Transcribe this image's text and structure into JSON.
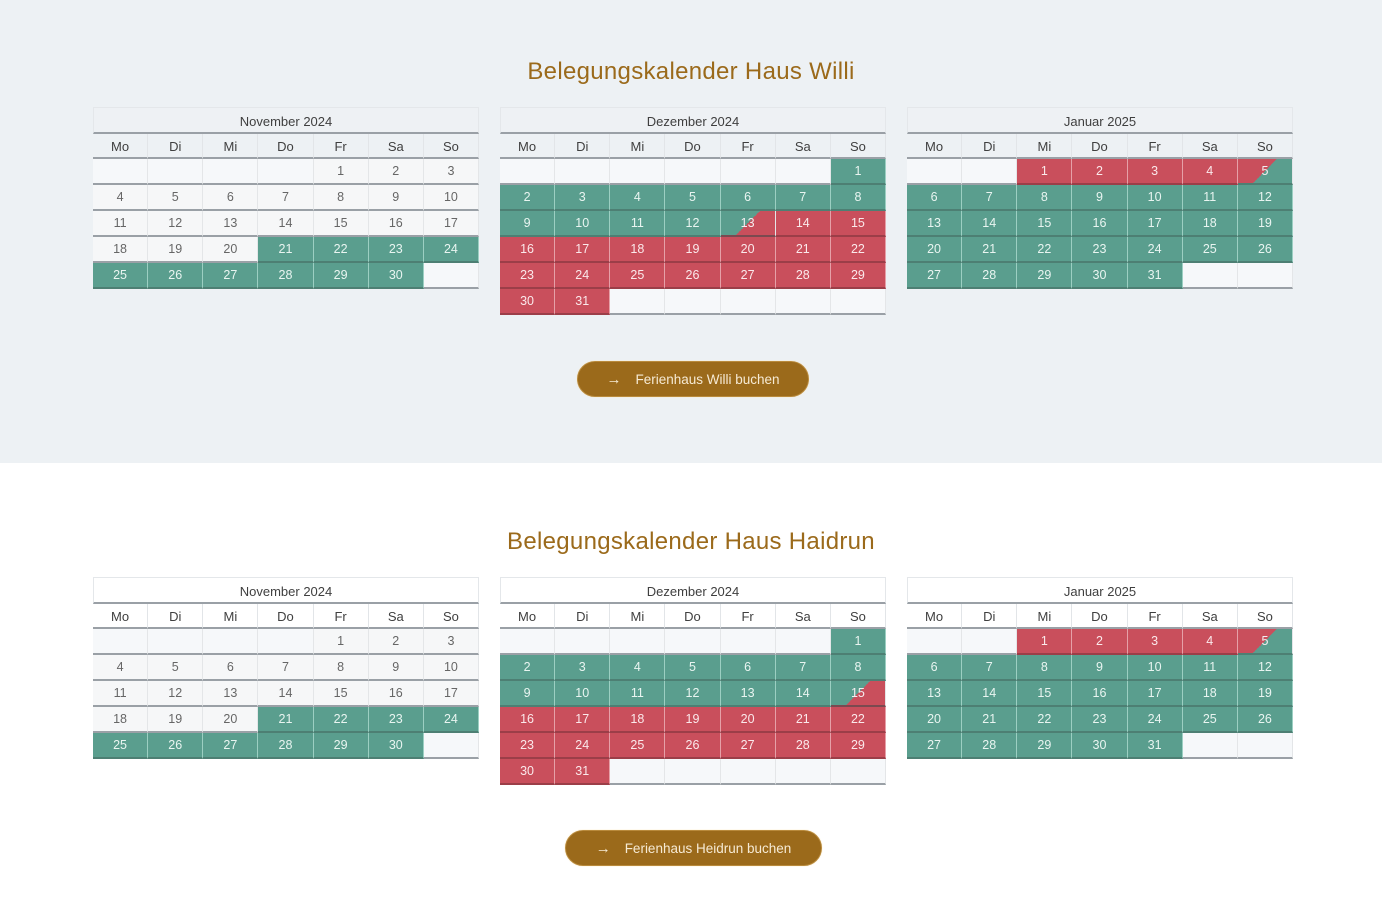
{
  "colors": {
    "accent": "#9b6a1b",
    "free": "#5a9e8e",
    "booked": "#c94f5c",
    "section1_bg": "#edf1f4",
    "section2_bg": "#ffffff"
  },
  "weekday_labels": [
    "Mo",
    "Di",
    "Mi",
    "Do",
    "Fr",
    "Sa",
    "So"
  ],
  "legend_note": "free = green, booked = red, half = arrival/departure day",
  "sections": [
    {
      "title": "Belegungskalender Haus Willi",
      "button": {
        "label": "Ferienhaus Willi buchen",
        "icon": "arrow-right-icon"
      },
      "months": [
        {
          "name": "November 2024",
          "lead_empty": 4,
          "days": 30,
          "status": {
            "21": "free",
            "22": "free",
            "23": "free",
            "24": "free",
            "25": "free",
            "26": "free",
            "27": "free",
            "28": "free",
            "29": "free",
            "30": "free"
          }
        },
        {
          "name": "Dezember 2024",
          "lead_empty": 6,
          "days": 31,
          "status": {
            "1": "free",
            "2": "free",
            "3": "free",
            "4": "free",
            "5": "free",
            "6": "free",
            "7": "free",
            "8": "free",
            "9": "free",
            "10": "free",
            "11": "free",
            "12": "free",
            "13": "half-fb",
            "14": "booked",
            "15": "booked",
            "16": "booked",
            "17": "booked",
            "18": "booked",
            "19": "booked",
            "20": "booked",
            "21": "booked",
            "22": "booked",
            "23": "booked",
            "24": "booked",
            "25": "booked",
            "26": "booked",
            "27": "booked",
            "28": "booked",
            "29": "booked",
            "30": "booked",
            "31": "booked"
          }
        },
        {
          "name": "Januar 2025",
          "lead_empty": 2,
          "days": 31,
          "status": {
            "1": "booked",
            "2": "booked",
            "3": "booked",
            "4": "booked",
            "5": "half-bf",
            "6": "free",
            "7": "free",
            "8": "free",
            "9": "free",
            "10": "free",
            "11": "free",
            "12": "free",
            "13": "free",
            "14": "free",
            "15": "free",
            "16": "free",
            "17": "free",
            "18": "free",
            "19": "free",
            "20": "free",
            "21": "free",
            "22": "free",
            "23": "free",
            "24": "free",
            "25": "free",
            "26": "free",
            "27": "free",
            "28": "free",
            "29": "free",
            "30": "free",
            "31": "free"
          }
        }
      ]
    },
    {
      "title": "Belegungskalender Haus Haidrun",
      "button": {
        "label": "Ferienhaus Heidrun buchen",
        "icon": "arrow-right-icon"
      },
      "months": [
        {
          "name": "November 2024",
          "lead_empty": 4,
          "days": 30,
          "status": {
            "21": "free",
            "22": "free",
            "23": "free",
            "24": "free",
            "25": "free",
            "26": "free",
            "27": "free",
            "28": "free",
            "29": "free",
            "30": "free"
          }
        },
        {
          "name": "Dezember 2024",
          "lead_empty": 6,
          "days": 31,
          "status": {
            "1": "free",
            "2": "free",
            "3": "free",
            "4": "free",
            "5": "free",
            "6": "free",
            "7": "free",
            "8": "free",
            "9": "free",
            "10": "free",
            "11": "free",
            "12": "free",
            "13": "free",
            "14": "free",
            "15": "half-fb",
            "16": "booked",
            "17": "booked",
            "18": "booked",
            "19": "booked",
            "20": "booked",
            "21": "booked",
            "22": "booked",
            "23": "booked",
            "24": "booked",
            "25": "booked",
            "26": "booked",
            "27": "booked",
            "28": "booked",
            "29": "booked",
            "30": "booked",
            "31": "booked"
          }
        },
        {
          "name": "Januar 2025",
          "lead_empty": 2,
          "days": 31,
          "status": {
            "1": "booked",
            "2": "booked",
            "3": "booked",
            "4": "booked",
            "5": "half-bf",
            "6": "free",
            "7": "free",
            "8": "free",
            "9": "free",
            "10": "free",
            "11": "free",
            "12": "free",
            "13": "free",
            "14": "free",
            "15": "free",
            "16": "free",
            "17": "free",
            "18": "free",
            "19": "free",
            "20": "free",
            "21": "free",
            "22": "free",
            "23": "free",
            "24": "free",
            "25": "free",
            "26": "free",
            "27": "free",
            "28": "free",
            "29": "free",
            "30": "free",
            "31": "free"
          }
        }
      ]
    }
  ]
}
